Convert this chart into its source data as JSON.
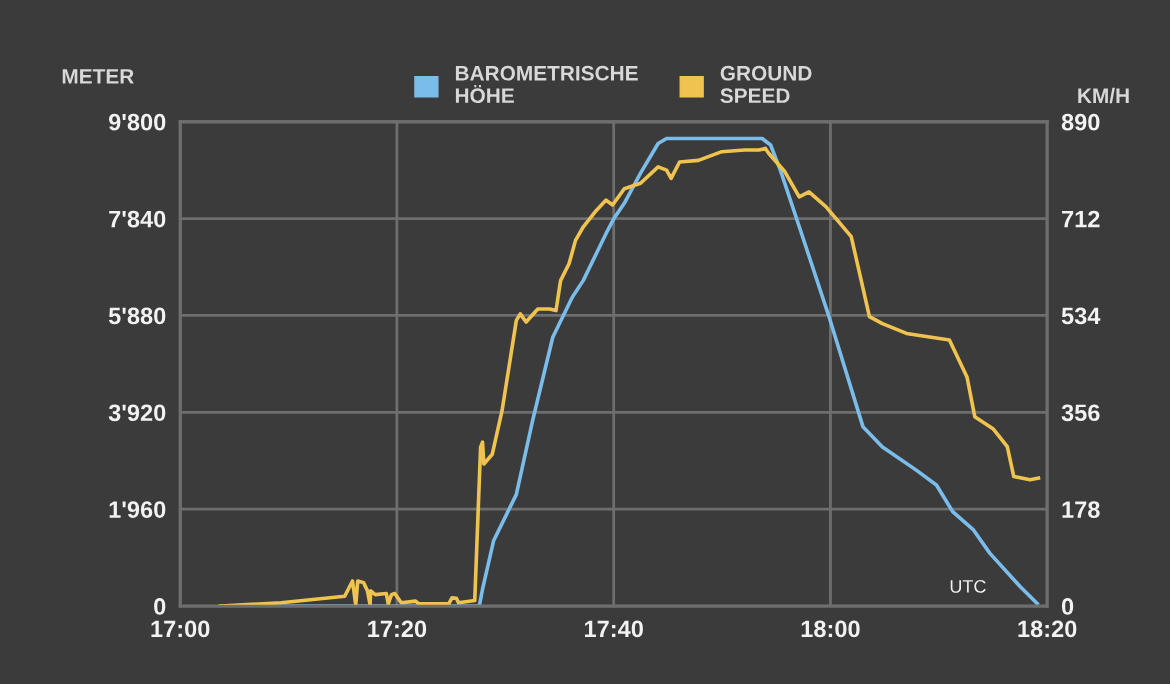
{
  "chart_data": {
    "type": "line",
    "ylabel": "METER",
    "y2label": "KM/H",
    "legend": "top",
    "grid": true,
    "marker": "none",
    "line_style": "solid",
    "annotations": [
      "UTC"
    ],
    "xlim": [
      17,
      18.3333
    ],
    "xticks": [
      {
        "value": 17,
        "label": "17:00"
      },
      {
        "value": 17.3333,
        "label": "17:20"
      },
      {
        "value": 17.6667,
        "label": "17:40"
      },
      {
        "value": 18,
        "label": "18:00"
      },
      {
        "value": 18.3333,
        "label": "18:20"
      }
    ],
    "ylim": [
      0,
      9800
    ],
    "yticks": [
      0,
      {
        "value": 1960,
        "label": "1'960"
      },
      {
        "value": 3920,
        "label": "3'920"
      },
      {
        "value": 5880,
        "label": "5'880"
      },
      {
        "value": 7840,
        "label": "7'840"
      },
      {
        "value": 9800,
        "label": "9'800"
      }
    ],
    "y2lim": [
      0,
      890
    ],
    "y2ticks": [
      0,
      178,
      356,
      534,
      712,
      890
    ],
    "series": [
      {
        "name": "BAROMETRISCHE\nHÖHE",
        "color": "#7bbdea",
        "x": [
          17.062,
          17.46,
          17.465,
          17.482,
          17.517,
          17.542,
          17.573,
          17.603,
          17.62,
          17.655,
          17.667,
          17.683,
          17.708,
          17.735,
          17.748,
          17.895,
          17.908,
          17.923,
          17.952,
          17.998,
          18.05,
          18.08,
          18.132,
          18.163,
          18.188,
          18.22,
          18.245,
          18.292,
          18.318
        ],
        "values": [
          0,
          0,
          340,
          1320,
          2260,
          3750,
          5440,
          6250,
          6590,
          7540,
          7840,
          8150,
          8760,
          9360,
          9460,
          9460,
          9330,
          8820,
          7680,
          5850,
          3630,
          3220,
          2750,
          2450,
          1910,
          1540,
          1070,
          390,
          50
        ]
      },
      {
        "name": "GROUND\nSPEED",
        "color": "#f0c350",
        "axis": "y2",
        "x": [
          17.062,
          17.155,
          17.253,
          17.265,
          17.27,
          17.273,
          17.282,
          17.288,
          17.292,
          17.293,
          17.3,
          17.317,
          17.32,
          17.325,
          17.33,
          17.34,
          17.362,
          17.367,
          17.413,
          17.418,
          17.425,
          17.428,
          17.453,
          17.462,
          17.465,
          17.467,
          17.48,
          17.495,
          17.517,
          17.523,
          17.532,
          17.55,
          17.568,
          17.578,
          17.585,
          17.598,
          17.608,
          17.62,
          17.64,
          17.655,
          17.665,
          17.683,
          17.708,
          17.735,
          17.748,
          17.755,
          17.768,
          17.797,
          17.833,
          17.868,
          17.89,
          17.9,
          17.905,
          17.93,
          17.952,
          17.967,
          17.993,
          18.032,
          18.06,
          18.08,
          18.117,
          18.183,
          18.21,
          18.222,
          18.25,
          18.272,
          18.282,
          18.307,
          18.32
        ],
        "values": [
          0,
          6,
          18,
          46,
          2,
          46,
          43,
          28,
          3,
          28,
          21,
          23,
          4,
          21,
          23,
          6,
          9,
          4,
          4,
          15,
          14,
          6,
          10,
          292,
          301,
          261,
          279,
          359,
          525,
          537,
          522,
          546,
          546,
          543,
          598,
          629,
          672,
          697,
          727,
          746,
          737,
          767,
          777,
          807,
          801,
          786,
          816,
          819,
          835,
          838,
          838,
          841,
          832,
          798,
          752,
          761,
          734,
          679,
          532,
          519,
          501,
          489,
          421,
          348,
          326,
          293,
          238,
          232,
          235
        ]
      }
    ]
  }
}
